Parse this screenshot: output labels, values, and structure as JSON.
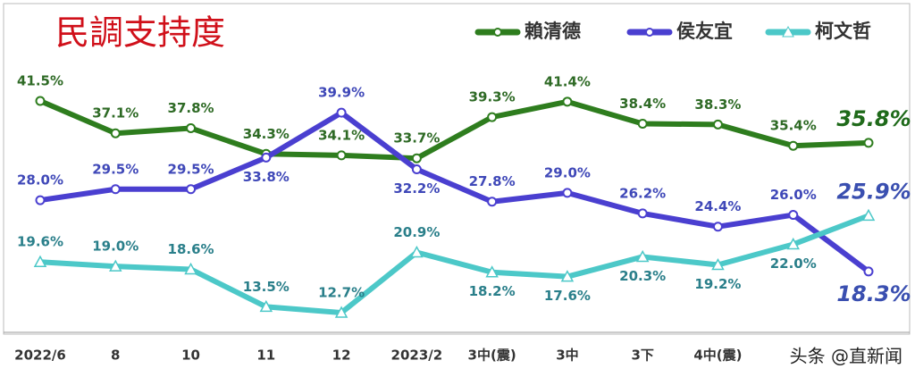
{
  "chart_data": {
    "type": "line",
    "title": "民調支持度",
    "categories": [
      "2022/6",
      "8",
      "10",
      "11",
      "12",
      "2023/2",
      "3中(震)",
      "3中",
      "3下",
      "4中(震)",
      null,
      null
    ],
    "series": [
      {
        "name": "賴清德",
        "color": "#2e7d1e",
        "label_color": "#2e6a25",
        "values": [
          41.5,
          37.1,
          37.8,
          34.3,
          34.1,
          33.7,
          39.3,
          41.4,
          38.4,
          38.3,
          35.4,
          35.8
        ],
        "value_labels": [
          "41.5%",
          "37.1%",
          "37.8%",
          "34.3%",
          "34.1%",
          "33.7%",
          "39.3%",
          "41.4%",
          "38.4%",
          "38.3%",
          "35.4%",
          "35.8%"
        ]
      },
      {
        "name": "侯友宜",
        "color": "#4a3fd0",
        "label_color": "#3f48b8",
        "values": [
          28.0,
          29.5,
          29.5,
          33.8,
          39.9,
          32.2,
          27.8,
          29.0,
          26.2,
          24.4,
          26.0,
          18.3
        ],
        "value_labels": [
          "28.0%",
          "29.5%",
          "29.5%",
          "33.8%",
          "39.9%",
          "32.2%",
          "27.8%",
          "29.0%",
          "26.2%",
          "24.4%",
          "26.0%",
          "18.3%"
        ]
      },
      {
        "name": "柯文哲",
        "color": "#4cc8c8",
        "label_color": "#2a7f8a",
        "values": [
          19.6,
          19.0,
          18.6,
          13.5,
          12.7,
          20.9,
          18.2,
          17.6,
          20.3,
          19.2,
          22.0,
          25.9
        ],
        "value_labels": [
          "19.6%",
          "19.0%",
          "18.6%",
          "13.5%",
          "12.7%",
          "20.9%",
          "18.2%",
          "17.6%",
          "20.3%",
          "19.2%",
          "22.0%",
          "25.9%"
        ]
      }
    ],
    "watermark": "头条 @直新闻"
  }
}
